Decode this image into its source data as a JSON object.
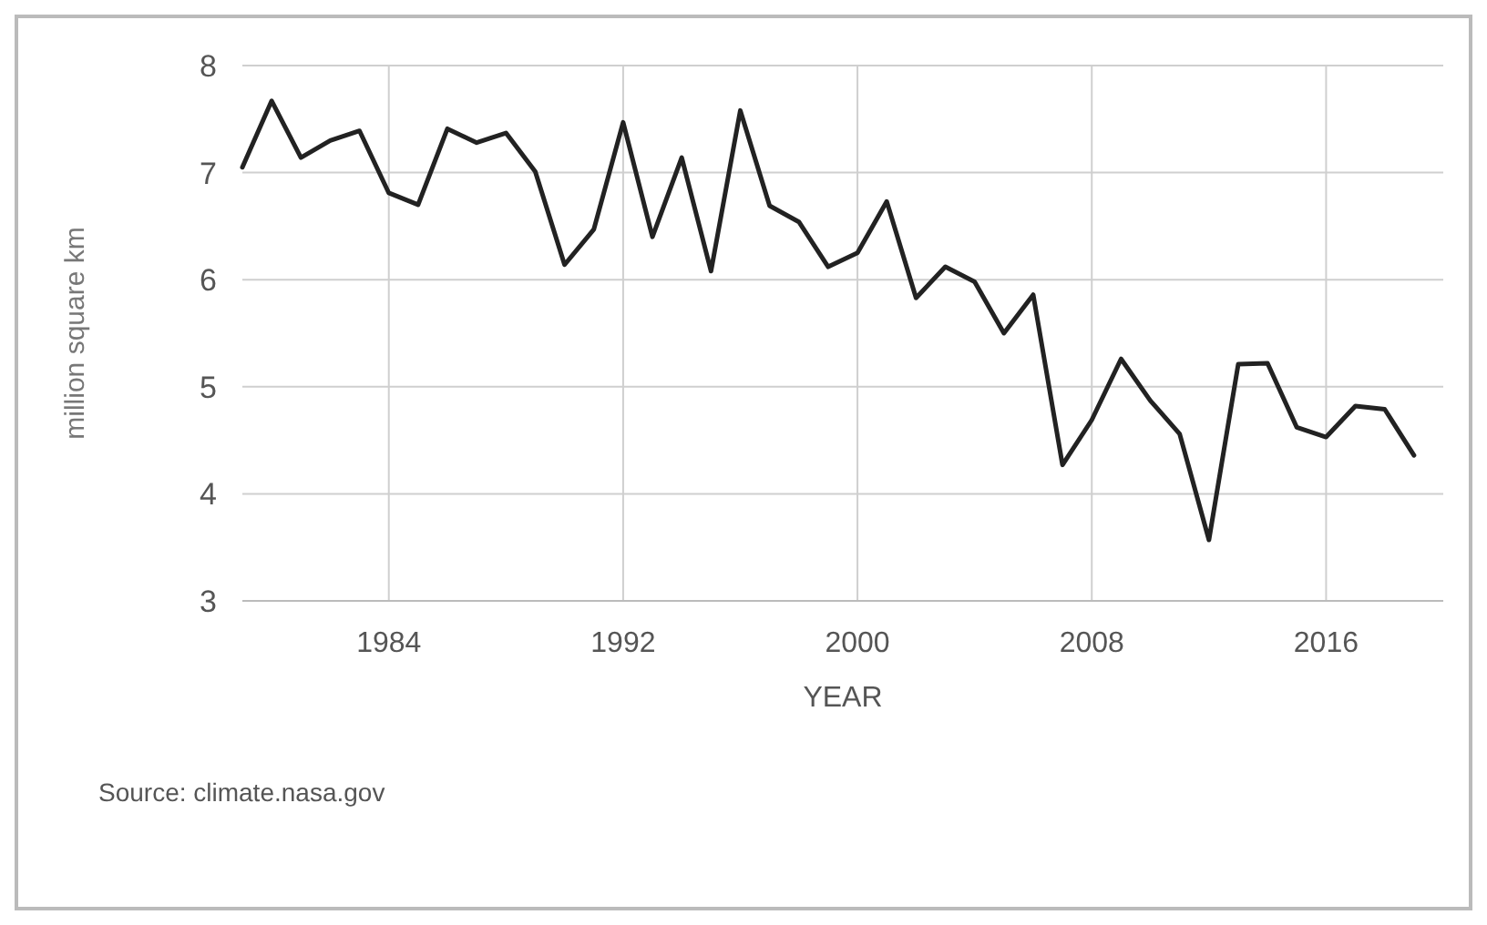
{
  "chart_data": {
    "type": "line",
    "xlabel": "YEAR",
    "ylabel": "million square km",
    "annotations": [
      "Source: climate.nasa.gov"
    ],
    "x": [
      1979,
      1980,
      1981,
      1982,
      1983,
      1984,
      1985,
      1986,
      1987,
      1988,
      1989,
      1990,
      1991,
      1992,
      1993,
      1994,
      1995,
      1996,
      1997,
      1998,
      1999,
      2000,
      2001,
      2002,
      2003,
      2004,
      2005,
      2006,
      2007,
      2008,
      2009,
      2010,
      2011,
      2012,
      2013,
      2014,
      2015,
      2016,
      2017,
      2018,
      2019
    ],
    "series": [
      {
        "color": "#222222",
        "values": [
          7.05,
          7.67,
          7.14,
          7.3,
          7.39,
          6.81,
          6.7,
          7.41,
          7.28,
          7.37,
          7.01,
          6.14,
          6.47,
          7.47,
          6.4,
          7.14,
          6.08,
          7.58,
          6.69,
          6.54,
          6.12,
          6.25,
          6.73,
          5.83,
          6.12,
          5.98,
          5.5,
          5.86,
          4.27,
          4.69,
          5.26,
          4.87,
          4.56,
          3.57,
          5.21,
          5.22,
          4.62,
          4.53,
          4.82,
          4.79,
          4.36
        ]
      }
    ],
    "xlim": [
      1979,
      2020
    ],
    "xticks": [
      1984,
      1992,
      2000,
      2008,
      2016
    ],
    "ylim": [
      3,
      8
    ],
    "yticks": [
      3,
      4,
      5,
      6,
      7,
      8
    ],
    "grid": true,
    "marker": "none",
    "line_style": "solid"
  }
}
